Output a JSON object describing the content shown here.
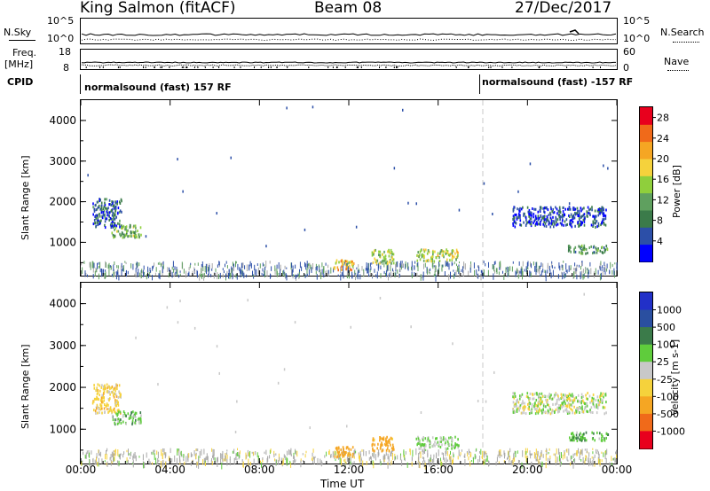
{
  "header": {
    "station": "King Salmon (fitACF)",
    "beam": "Beam 08",
    "date": "27/Dec/2017"
  },
  "strip": {
    "nsky_label": "N.Sky",
    "nsearch_label": "N.Search",
    "nsky_ticks": [
      "10^5",
      "10^0"
    ],
    "nsearch_ticks": [
      "10^5",
      "10^0"
    ],
    "freq_label": "Freq.",
    "freq_unit": "[MHz]",
    "freq_ticks": [
      "18",
      "8"
    ],
    "nave_label": "Nave",
    "nave_ticks": [
      "60",
      "0"
    ],
    "cpid_label": "CPID",
    "cpid_segments": [
      "normalsound (fast) 157 RF",
      "normalsound (fast) -157 RF"
    ]
  },
  "colors": {
    "power_scale": [
      "#0000ff",
      "#2c4fa8",
      "#3b7b4a",
      "#5fa05f",
      "#8fcf3c",
      "#f5d23c",
      "#f5a623",
      "#f06a1a",
      "#e8001d"
    ],
    "velocity_scale": [
      "#2230c8",
      "#2a4fa0",
      "#3b7b4a",
      "#5fcc3c",
      "#c8c8c8",
      "#f5d23c",
      "#f5a623",
      "#f06a1a",
      "#e8001d"
    ],
    "ground_scatter": "#a8a8a8",
    "terminator_line": "#c8c8c8"
  },
  "chart_data": [
    {
      "type": "heatmap",
      "title": "Power",
      "xlabel": "",
      "ylabel": "Slant Range [km]",
      "x_ticks": [
        "00:00",
        "04:00",
        "08:00",
        "12:00",
        "16:00",
        "20:00",
        "00:00"
      ],
      "xlim_hours": [
        0,
        24
      ],
      "y_ticks": [
        "1000",
        "2000",
        "3000",
        "4000"
      ],
      "ylim_km": [
        180,
        4500
      ],
      "colorbar_label": "Power [dB]",
      "colorbar_ticks": [
        "4",
        "8",
        "12",
        "16",
        "20",
        "24",
        "28"
      ],
      "colorbar_range": [
        0,
        30
      ],
      "terminator_hour": 18,
      "regions": [
        {
          "t0": 0.5,
          "t1": 1.8,
          "r0": 1400,
          "r1": 2100,
          "value": 6
        },
        {
          "t0": 1.3,
          "t1": 2.7,
          "r0": 1150,
          "r1": 1450,
          "value": 12
        },
        {
          "t0": 11.3,
          "t1": 12.2,
          "r0": 350,
          "r1": 600,
          "value": 20
        },
        {
          "t0": 13.0,
          "t1": 14.0,
          "r0": 500,
          "r1": 850,
          "value": 15
        },
        {
          "t0": 15.0,
          "t1": 16.9,
          "r0": 550,
          "r1": 850,
          "value": 16
        },
        {
          "t0": 19.3,
          "t1": 23.5,
          "r0": 1400,
          "r1": 1900,
          "value": 5
        },
        {
          "t0": 21.8,
          "t1": 23.6,
          "r0": 750,
          "r1": 950,
          "value": 10
        }
      ]
    },
    {
      "type": "heatmap",
      "title": "Velocity",
      "xlabel": "Time UT",
      "ylabel": "Slant Range [km]",
      "x_ticks": [
        "00:00",
        "04:00",
        "08:00",
        "12:00",
        "16:00",
        "20:00",
        "00:00"
      ],
      "xlim_hours": [
        0,
        24
      ],
      "y_ticks": [
        "1000",
        "2000",
        "3000",
        "4000"
      ],
      "ylim_km": [
        180,
        4500
      ],
      "colorbar_label": "Velocity [m s-1]",
      "colorbar_ticks": [
        "1000",
        "500",
        "100",
        "25",
        "-25",
        "-100",
        "-500",
        "-1000"
      ],
      "terminator_hour": 18,
      "regions": [
        {
          "t0": 0.5,
          "t1": 1.8,
          "r0": 1400,
          "r1": 2100,
          "value": -60
        },
        {
          "t0": 1.3,
          "t1": 2.7,
          "r0": 1150,
          "r1": 1450,
          "value": 60
        },
        {
          "t0": 11.3,
          "t1": 12.2,
          "r0": 350,
          "r1": 600,
          "value": -200
        },
        {
          "t0": 13.0,
          "t1": 14.0,
          "r0": 500,
          "r1": 850,
          "value": -150
        },
        {
          "t0": 15.0,
          "t1": 16.9,
          "r0": 550,
          "r1": 850,
          "value": 40
        },
        {
          "t0": 19.3,
          "t1": 23.5,
          "r0": 1400,
          "r1": 1900,
          "value": 5
        },
        {
          "t0": 21.8,
          "t1": 23.6,
          "r0": 750,
          "r1": 950,
          "value": 80
        }
      ]
    }
  ]
}
